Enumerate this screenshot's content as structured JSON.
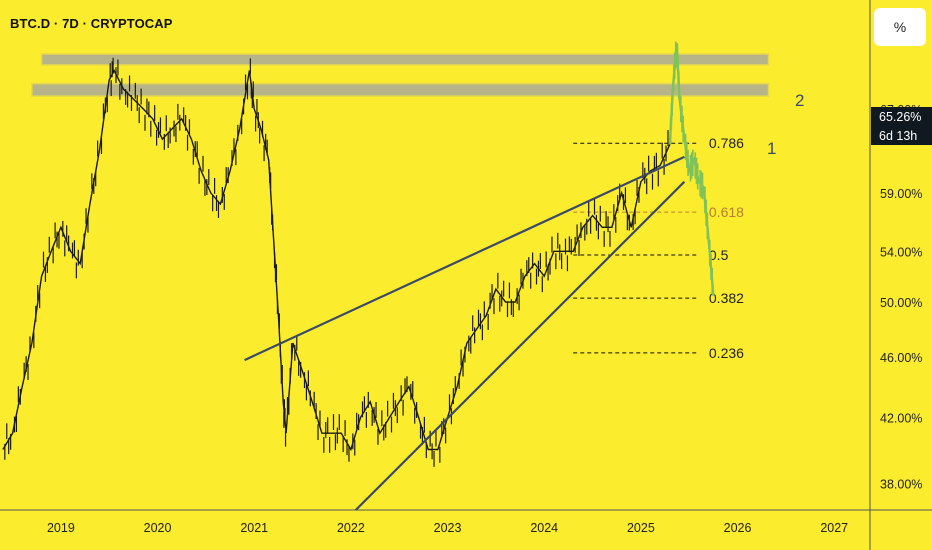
{
  "header": {
    "title": "BTC.D · 7D · CRYPTOCAP"
  },
  "scale_button": {
    "label": "%"
  },
  "price_badge": {
    "value": "65.26%",
    "countdown": "6d 13h"
  },
  "markers": {
    "one": "1",
    "two": "2"
  },
  "colors": {
    "background": "#fcec2e",
    "trendline": "#3b4a66",
    "candle": "#1a1a1a",
    "projection": "#7fc25a",
    "resistance_zone": "#b8b48a",
    "fib_label": "#222222",
    "fib_highlight": "#b5802f",
    "badge_bg": "#101820"
  },
  "chart_data": {
    "type": "line",
    "title": "BTC.D · 7D · CRYPTOCAP",
    "timeframe": "7D",
    "yscale": "log",
    "ylim": [
      36.5,
      79
    ],
    "xlim": [
      2018.42,
      2027.42
    ],
    "x_ticks": [
      "2019",
      "2020",
      "2021",
      "2022",
      "2023",
      "2024",
      "2025",
      "2026",
      "2027"
    ],
    "y_ticks": [
      "75.00%",
      "67.00%",
      "59.00%",
      "54.00%",
      "50.00%",
      "46.00%",
      "42.00%",
      "38.00%"
    ],
    "y_tick_values": [
      75,
      67,
      59,
      54,
      50,
      46,
      42,
      38
    ],
    "series": [
      {
        "role": "price",
        "x": [
          2018.45,
          2018.55,
          2018.65,
          2018.75,
          2018.85,
          2018.95,
          2019.05,
          2019.15,
          2019.25,
          2019.35,
          2019.45,
          2019.55,
          2019.6,
          2019.7,
          2019.8,
          2019.9,
          2020.0,
          2020.1,
          2020.2,
          2020.3,
          2020.4,
          2020.5,
          2020.6,
          2020.7,
          2020.8,
          2020.9,
          2021.0,
          2021.05,
          2021.12,
          2021.2,
          2021.25,
          2021.3,
          2021.35,
          2021.38,
          2021.45,
          2021.55,
          2021.65,
          2021.75,
          2021.85,
          2021.95,
          2022.05,
          2022.15,
          2022.25,
          2022.35,
          2022.45,
          2022.55,
          2022.65,
          2022.75,
          2022.85,
          2022.95,
          2023.05,
          2023.15,
          2023.25,
          2023.35,
          2023.45,
          2023.55,
          2023.65,
          2023.75,
          2023.85,
          2023.95,
          2024.05,
          2024.15,
          2024.25,
          2024.35,
          2024.45,
          2024.55,
          2024.65,
          2024.75,
          2024.85,
          2024.95,
          2025.05,
          2025.15,
          2025.25,
          2025.35
        ],
        "y": [
          40,
          41,
          44,
          47,
          52,
          54,
          56,
          54,
          53,
          58,
          63,
          70,
          71,
          69,
          68,
          67,
          66,
          64,
          65,
          66,
          64,
          61,
          59,
          58,
          61,
          65,
          71,
          67,
          65,
          62,
          55,
          49,
          43,
          41,
          47,
          45,
          43,
          41,
          41,
          41,
          40,
          42,
          43,
          41,
          42,
          43,
          44,
          42,
          40,
          40,
          42,
          44,
          47,
          48,
          49,
          51,
          50,
          50,
          52,
          53,
          52,
          54,
          54,
          54,
          56,
          57,
          56,
          56,
          59,
          56,
          60,
          61,
          61.5,
          63.5
        ]
      },
      {
        "role": "projection",
        "x": [
          2025.35,
          2025.38,
          2025.42,
          2025.45,
          2025.5,
          2025.55,
          2025.6,
          2025.65,
          2025.7,
          2025.75,
          2025.8
        ],
        "y": [
          63.5,
          69,
          74,
          68,
          64,
          61,
          62,
          60,
          59.5,
          55,
          50.5
        ]
      }
    ],
    "resistance_zones": [
      {
        "label": "2",
        "x_start": 2018.85,
        "x_end": 2026.37,
        "y_low": 71.6,
        "y_high": 72.8
      },
      {
        "label": "1",
        "x_start": 2018.75,
        "x_end": 2026.37,
        "y_low": 68.3,
        "y_high": 69.6
      }
    ],
    "trendlines": [
      {
        "x1": 2020.95,
        "y1": 45.8,
        "x2": 2025.5,
        "y2": 62.3
      },
      {
        "x1": 2022.1,
        "y1": 36.5,
        "x2": 2025.5,
        "y2": 60.0
      }
    ],
    "fib_levels": [
      {
        "label": "0.786",
        "value": 63.6
      },
      {
        "label": "0.618",
        "value": 57.3,
        "highlight": true
      },
      {
        "label": "0.5",
        "value": 53.7
      },
      {
        "label": "0.382",
        "value": 50.3
      },
      {
        "label": "0.236",
        "value": 46.3
      }
    ],
    "fib_x_start": 2024.35,
    "fib_x_end": 2025.65,
    "current_value": 65.26
  }
}
